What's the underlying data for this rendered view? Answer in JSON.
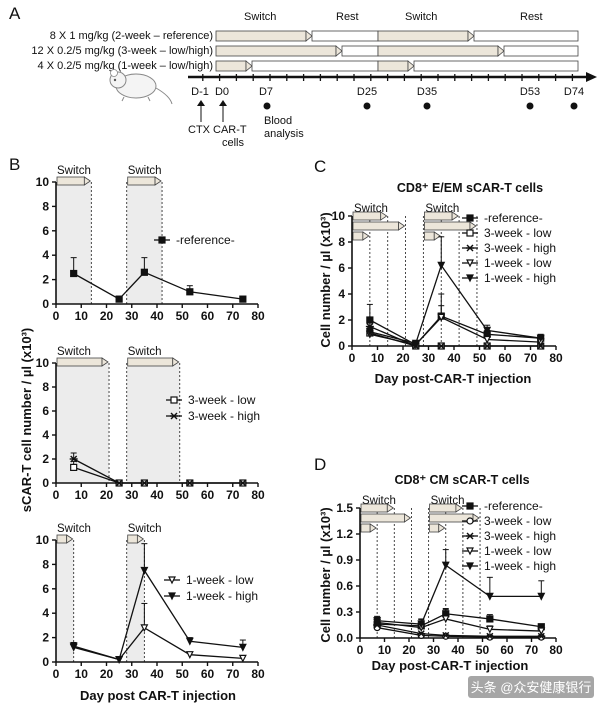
{
  "panel_letters": [
    "A",
    "B",
    "C",
    "D"
  ],
  "schedule": {
    "labels": {
      "switch1": "Switch",
      "rest1": "Rest",
      "switch2": "Switch",
      "rest2": "Rest"
    },
    "regimens": [
      "8 X 1 mg/kg (2-week – reference)",
      "12 X 0.2/5 mg/kg (3-week – low/high)",
      "4 X 0.2/5 mg/kg (1-week – low/high)"
    ],
    "days": [
      "D-1",
      "D0",
      "D7",
      "D25",
      "D35",
      "D53",
      "D74"
    ],
    "events": {
      "ctx": "CTX",
      "cart": "CAR-T",
      "cells": "cells",
      "blood1": "Blood",
      "blood2": "analysis"
    }
  },
  "watermark": "头条 @众安健康银行",
  "colors": {
    "shade": "#ececec",
    "arrow_fill": "#ece6da",
    "line": "#111111"
  },
  "chart_data": [
    {
      "panel": "B-top",
      "type": "line",
      "switch_label": "Switch",
      "ylabel": "sCAR-T cell number / µl (x10³)",
      "xlabel": "",
      "xlim": [
        0,
        80
      ],
      "ylim": [
        0,
        10
      ],
      "xticks": [
        0,
        10,
        20,
        30,
        40,
        50,
        60,
        70,
        80
      ],
      "yticks": [
        0,
        2,
        4,
        6,
        8,
        10
      ],
      "shaded": [
        [
          0,
          14
        ],
        [
          28,
          42
        ]
      ],
      "series": [
        {
          "name": "-reference-",
          "marker": "square-filled",
          "x": [
            7,
            25,
            35,
            53,
            74
          ],
          "values": [
            2.5,
            0.4,
            2.6,
            1.0,
            0.4
          ],
          "err": [
            1.3,
            0,
            1.2,
            0.5,
            0
          ]
        }
      ]
    },
    {
      "panel": "B-mid",
      "type": "line",
      "switch_label": "Switch",
      "xlim": [
        0,
        80
      ],
      "ylim": [
        0,
        10
      ],
      "xticks": [
        0,
        10,
        20,
        30,
        40,
        50,
        60,
        70,
        80
      ],
      "yticks": [
        0,
        2,
        4,
        6,
        8,
        10
      ],
      "shaded": [
        [
          0,
          21
        ],
        [
          28,
          49
        ]
      ],
      "series": [
        {
          "name": "3-week - low",
          "marker": "square-open",
          "x": [
            7,
            25,
            35,
            53,
            74
          ],
          "values": [
            1.3,
            0,
            0,
            0,
            0
          ],
          "err": [
            0.5,
            0,
            0,
            0,
            0
          ]
        },
        {
          "name": "3-week - high",
          "marker": "star",
          "x": [
            7,
            25,
            35,
            53,
            74
          ],
          "values": [
            2.0,
            0,
            0,
            0,
            0
          ],
          "err": [
            0.5,
            0,
            0,
            0,
            0
          ]
        }
      ]
    },
    {
      "panel": "B-bottom",
      "type": "line",
      "switch_label": "Switch",
      "xlabel": "Day post CAR-T injection",
      "xlim": [
        0,
        80
      ],
      "ylim": [
        0,
        10
      ],
      "xticks": [
        0,
        10,
        20,
        30,
        40,
        50,
        60,
        70,
        80
      ],
      "yticks": [
        0,
        2,
        4,
        6,
        8,
        10
      ],
      "shaded": [
        [
          0,
          7
        ],
        [
          28,
          35
        ]
      ],
      "series": [
        {
          "name": "1-week - low",
          "marker": "triangle-open",
          "x": [
            7,
            25,
            35,
            53,
            74
          ],
          "values": [
            1.2,
            0.2,
            2.8,
            0.6,
            0.3
          ],
          "err": [
            0.3,
            0,
            2.0,
            0.2,
            0.2
          ]
        },
        {
          "name": "1-week - high",
          "marker": "triangle-filled",
          "x": [
            7,
            25,
            35,
            53,
            74
          ],
          "values": [
            1.3,
            0.2,
            7.5,
            1.7,
            1.2
          ],
          "err": [
            0.3,
            0,
            2.2,
            0.3,
            0.6
          ]
        }
      ]
    },
    {
      "panel": "C",
      "type": "line",
      "title": "CD8⁺ E/EM sCAR-T cells",
      "switch_label": "Switch",
      "ylabel": "Cell number / µl (x10³)",
      "xlabel": "Day post-CAR-T injection",
      "xlim": [
        0,
        80
      ],
      "ylim": [
        0,
        10
      ],
      "xticks": [
        0,
        10,
        20,
        30,
        40,
        50,
        60,
        70,
        80
      ],
      "yticks": [
        0,
        2,
        4,
        6,
        8,
        10
      ],
      "dotted_lines": [
        7,
        14,
        21,
        28,
        35,
        42,
        49
      ],
      "series": [
        {
          "name": "-reference-",
          "marker": "square-filled",
          "x": [
            7,
            25,
            35,
            53,
            74
          ],
          "values": [
            2.0,
            0.1,
            2.3,
            0.9,
            0.6
          ],
          "err": [
            1.2,
            0,
            0.8,
            0.3,
            0.2
          ]
        },
        {
          "name": "3-week - low",
          "marker": "square-open",
          "x": [
            7,
            25,
            35,
            53,
            74
          ],
          "values": [
            1.0,
            0,
            0,
            0,
            0
          ],
          "err": [
            0.4,
            0,
            0,
            0,
            0
          ]
        },
        {
          "name": "3-week - high",
          "marker": "star",
          "x": [
            7,
            25,
            35,
            53,
            74
          ],
          "values": [
            1.5,
            0,
            0,
            0,
            0
          ],
          "err": [
            0.5,
            0,
            0,
            0,
            0
          ]
        },
        {
          "name": "1-week - low",
          "marker": "triangle-open",
          "x": [
            7,
            25,
            35,
            53,
            74
          ],
          "values": [
            0.9,
            0.1,
            2.2,
            0.5,
            0.3
          ],
          "err": [
            0.3,
            0,
            1.8,
            0.2,
            0.1
          ]
        },
        {
          "name": "1-week - high",
          "marker": "triangle-filled",
          "x": [
            7,
            25,
            35,
            53,
            74
          ],
          "values": [
            1.1,
            0.2,
            6.2,
            1.2,
            0.6
          ],
          "err": [
            0.4,
            0,
            2.2,
            0.4,
            0.3
          ]
        }
      ]
    },
    {
      "panel": "D",
      "type": "line",
      "title": "CD8⁺ CM sCAR-T cells",
      "switch_label": "Switch",
      "ylabel": "Cell number / µl (x10³)",
      "xlabel": "Day post-CAR-T injection",
      "xlim": [
        0,
        80
      ],
      "ylim": [
        0,
        1.5
      ],
      "xticks": [
        0,
        10,
        20,
        30,
        40,
        50,
        60,
        70,
        80
      ],
      "yticks": [
        0,
        0.3,
        0.6,
        0.9,
        1.2,
        1.5
      ],
      "ytick_labels": [
        "0.0",
        "0.3",
        "0.6",
        "0.9",
        "1.2",
        "1.5"
      ],
      "dotted_lines": [
        7,
        14,
        21,
        28,
        35,
        42,
        49
      ],
      "series": [
        {
          "name": "-reference-",
          "marker": "square-filled",
          "x": [
            7,
            25,
            35,
            53,
            74
          ],
          "values": [
            0.16,
            0.14,
            0.28,
            0.22,
            0.13
          ],
          "err": [
            0.08,
            0.08,
            0.05,
            0.05,
            0.03
          ]
        },
        {
          "name": "3-week - low",
          "marker": "circle-open",
          "x": [
            7,
            25,
            35,
            53,
            74
          ],
          "values": [
            0.12,
            0.03,
            0.02,
            0.01,
            0.01
          ],
          "err": [
            0.04,
            0,
            0,
            0,
            0
          ]
        },
        {
          "name": "3-week - high",
          "marker": "star",
          "x": [
            7,
            25,
            35,
            53,
            74
          ],
          "values": [
            0.15,
            0.05,
            0.03,
            0.02,
            0.02
          ],
          "err": [
            0.05,
            0,
            0,
            0,
            0
          ]
        },
        {
          "name": "1-week - low",
          "marker": "triangle-open",
          "x": [
            7,
            25,
            35,
            53,
            74
          ],
          "values": [
            0.18,
            0.12,
            0.22,
            0.1,
            0.08
          ],
          "err": [
            0.05,
            0.03,
            0.12,
            0.04,
            0.02
          ]
        },
        {
          "name": "1-week - high",
          "marker": "triangle-filled",
          "x": [
            7,
            25,
            35,
            53,
            74
          ],
          "values": [
            0.2,
            0.16,
            0.84,
            0.48,
            0.48
          ],
          "err": [
            0.05,
            0.05,
            0.18,
            0.22,
            0.18
          ]
        }
      ]
    }
  ]
}
